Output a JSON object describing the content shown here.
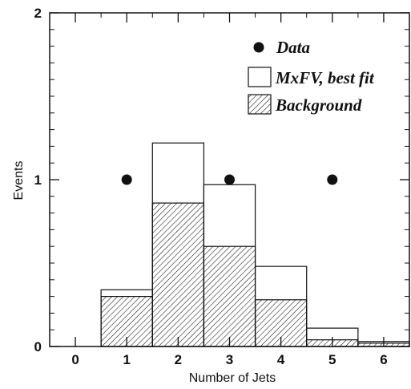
{
  "chart_data": {
    "type": "bar",
    "xlabel": "Number of Jets",
    "ylabel": "Events",
    "xlim": [
      -0.5,
      6.5
    ],
    "ylim": [
      0,
      2
    ],
    "x_ticks": [
      0,
      1,
      2,
      3,
      4,
      5,
      6
    ],
    "y_ticks": [
      0,
      1,
      2
    ],
    "legend_position": "top-right",
    "series": [
      {
        "name": "Data",
        "kind": "points",
        "x": [
          1,
          3,
          5
        ],
        "values": [
          1,
          1,
          1
        ]
      },
      {
        "name": "MxFV, best fit",
        "kind": "histogram-open",
        "x": [
          1,
          2,
          3,
          4,
          5,
          6
        ],
        "values": [
          0.34,
          1.22,
          0.97,
          0.48,
          0.11,
          0.03
        ]
      },
      {
        "name": "Background",
        "kind": "histogram-hatched",
        "x": [
          1,
          2,
          3,
          4,
          5,
          6
        ],
        "values": [
          0.3,
          0.86,
          0.6,
          0.28,
          0.04,
          0.02
        ]
      }
    ]
  }
}
